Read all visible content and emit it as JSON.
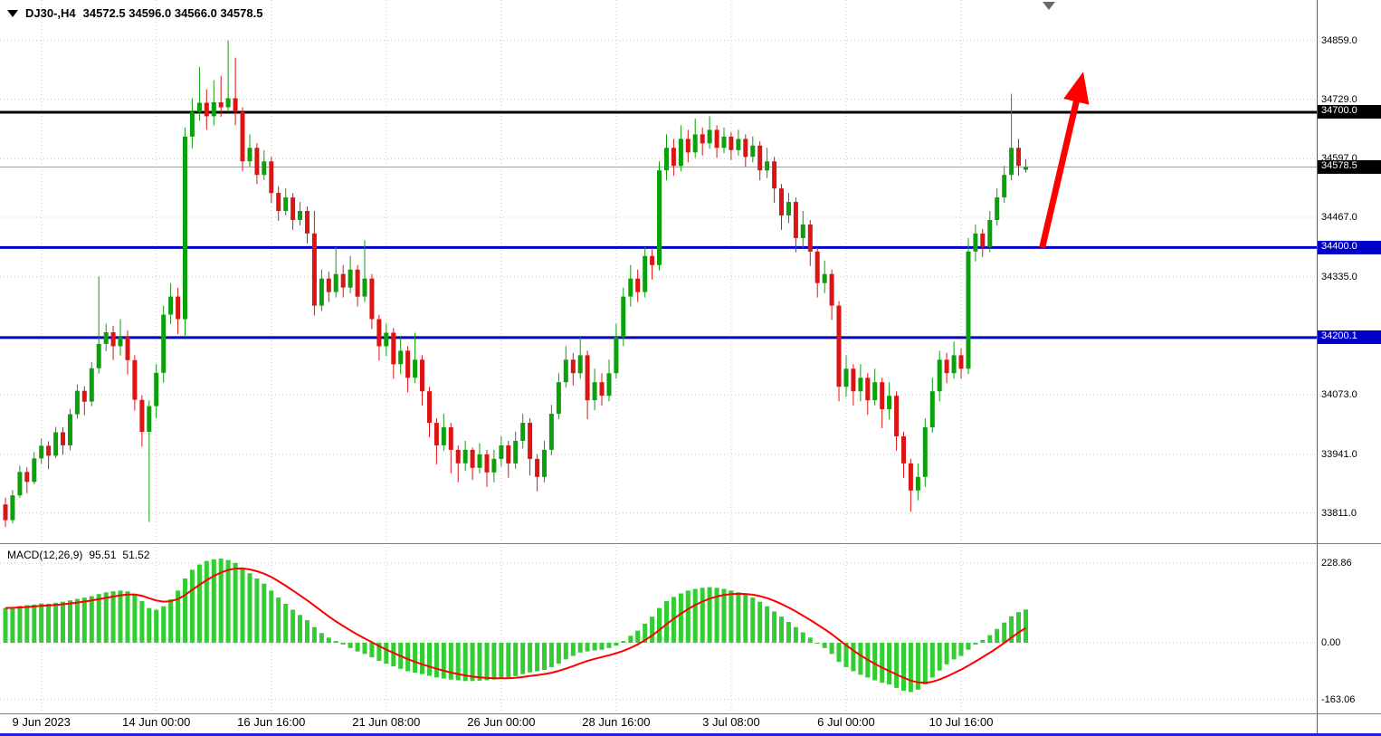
{
  "header": {
    "symbol_timeframe": "DJ30-,H4",
    "ohlc": "34572.5 34596.0 34566.0 34578.5"
  },
  "colors": {
    "background": "#FFFFFF",
    "bull": "#0ca00c",
    "bear": "#dc1414",
    "macd_hist": "#32CD32",
    "macd_signal": "#FF0000",
    "grid": "#c8c8c8",
    "current_line": "#a0a0a0",
    "arrow": "#FF0000",
    "hline_black": "#000000",
    "hline_blue": "#0000C8"
  },
  "price_axis": {
    "labels": [
      {
        "text": "34859.0",
        "price": 34859.0
      },
      {
        "text": "34729.0",
        "price": 34729.0
      },
      {
        "text": "34597.0",
        "price": 34597.0
      },
      {
        "text": "34467.0",
        "price": 34467.0
      },
      {
        "text": "34335.0",
        "price": 34335.0
      },
      {
        "text": "34073.0",
        "price": 34073.0
      },
      {
        "text": "33941.0",
        "price": 33941.0
      },
      {
        "text": "33811.0",
        "price": 33811.0
      }
    ],
    "badges": [
      {
        "text": "34700.0",
        "price": 34700.0,
        "bg": "#000000"
      },
      {
        "text": "34578.5",
        "price": 34578.5,
        "bg": "#000000"
      },
      {
        "text": "34400.0",
        "price": 34400.0,
        "bg": "#0000C8"
      },
      {
        "text": "34200.1",
        "price": 34200.1,
        "bg": "#0000C8"
      }
    ]
  },
  "time_axis": {
    "labels": [
      {
        "text": "9 Jun 2023",
        "index": 5
      },
      {
        "text": "14 Jun 00:00",
        "index": 21
      },
      {
        "text": "16 Jun 16:00",
        "index": 37
      },
      {
        "text": "21 Jun 08:00",
        "index": 53
      },
      {
        "text": "26 Jun 00:00",
        "index": 69
      },
      {
        "text": "28 Jun 16:00",
        "index": 85
      },
      {
        "text": "3 Jul 08:00",
        "index": 101
      },
      {
        "text": "6 Jul 00:00",
        "index": 117
      },
      {
        "text": "10 Jul 16:00",
        "index": 133
      }
    ]
  },
  "macd_panel": {
    "label": "MACD(12,26,9)",
    "macd_value": "95.51",
    "signal_value": "51.52",
    "scale": [
      {
        "text": "228.86",
        "value": 228.86
      },
      {
        "text": "0.00",
        "value": 0
      },
      {
        "text": "-163.06",
        "value": -163.06
      }
    ]
  },
  "chart_data": {
    "type": "candlestick",
    "symbol": "DJ30-",
    "timeframe": "H4",
    "title": "DJ30-,H4 34572.5 34596.0 34566.0 34578.5",
    "current_price": 34578.5,
    "price_range": {
      "min": 33744,
      "max": 34949
    },
    "hlines": [
      {
        "price": 34700.0,
        "color": "#000000",
        "width": 3
      },
      {
        "price": 34400.0,
        "color": "#0000C8",
        "width": 3
      },
      {
        "price": 34200.1,
        "color": "#0000C8",
        "width": 3
      }
    ],
    "trend_arrow": {
      "from_index": 144.3,
      "from_price": 34400,
      "to_index": 150,
      "to_price": 34790
    },
    "candles": [
      [
        33830,
        33845,
        33780,
        33795
      ],
      [
        33795,
        33862,
        33788,
        33850
      ],
      [
        33850,
        33916,
        33845,
        33902
      ],
      [
        33902,
        33912,
        33855,
        33880
      ],
      [
        33880,
        33946,
        33875,
        33932
      ],
      [
        33932,
        33976,
        33920,
        33960
      ],
      [
        33960,
        33970,
        33908,
        33938
      ],
      [
        33938,
        34002,
        33933,
        33990
      ],
      [
        33990,
        34001,
        33940,
        33961
      ],
      [
        33961,
        34042,
        33950,
        34030
      ],
      [
        34030,
        34096,
        34020,
        34082
      ],
      [
        34082,
        34092,
        34028,
        34058
      ],
      [
        34058,
        34146,
        34048,
        34132
      ],
      [
        34132,
        34335,
        34120,
        34186
      ],
      [
        34186,
        34231,
        34170,
        34212
      ],
      [
        34212,
        34226,
        34150,
        34181
      ],
      [
        34181,
        34241,
        34160,
        34201
      ],
      [
        34201,
        34216,
        34118,
        34150
      ],
      [
        34150,
        34161,
        34038,
        34062
      ],
      [
        34062,
        34072,
        33958,
        33991
      ],
      [
        33991,
        34061,
        33791,
        34048
      ],
      [
        34048,
        34141,
        34021,
        34122
      ],
      [
        34122,
        34271,
        34100,
        34251
      ],
      [
        34251,
        34321,
        34230,
        34291
      ],
      [
        34291,
        34311,
        34208,
        34241
      ],
      [
        34241,
        34666,
        34201,
        34646
      ],
      [
        34646,
        34731,
        34620,
        34701
      ],
      [
        34701,
        34801,
        34681,
        34721
      ],
      [
        34721,
        34751,
        34661,
        34691
      ],
      [
        34691,
        34771,
        34671,
        34722
      ],
      [
        34722,
        34781,
        34690,
        34711
      ],
      [
        34711,
        34859,
        34701,
        34731
      ],
      [
        34731,
        34821,
        34671,
        34701
      ],
      [
        34701,
        34711,
        34569,
        34591
      ],
      [
        34591,
        34651,
        34579,
        34621
      ],
      [
        34621,
        34631,
        34541,
        34561
      ],
      [
        34561,
        34616,
        34550,
        34591
      ],
      [
        34591,
        34601,
        34499,
        34521
      ],
      [
        34521,
        34536,
        34459,
        34481
      ],
      [
        34481,
        34531,
        34471,
        34511
      ],
      [
        34511,
        34521,
        34439,
        34461
      ],
      [
        34461,
        34501,
        34449,
        34481
      ],
      [
        34481,
        34491,
        34409,
        34431
      ],
      [
        34431,
        34481,
        34249,
        34271
      ],
      [
        34271,
        34351,
        34259,
        34331
      ],
      [
        34331,
        34346,
        34279,
        34301
      ],
      [
        34301,
        34401,
        34289,
        34341
      ],
      [
        34341,
        34361,
        34289,
        34311
      ],
      [
        34311,
        34381,
        34299,
        34351
      ],
      [
        34351,
        34361,
        34269,
        34291
      ],
      [
        34291,
        34416,
        34279,
        34331
      ],
      [
        34331,
        34341,
        34219,
        34241
      ],
      [
        34241,
        34251,
        34149,
        34181
      ],
      [
        34181,
        34231,
        34159,
        34211
      ],
      [
        34211,
        34221,
        34109,
        34141
      ],
      [
        34141,
        34201,
        34119,
        34171
      ],
      [
        34171,
        34181,
        34079,
        34111
      ],
      [
        34111,
        34211,
        34099,
        34151
      ],
      [
        34151,
        34161,
        34049,
        34081
      ],
      [
        34081,
        34091,
        33979,
        34011
      ],
      [
        34011,
        34021,
        33919,
        33961
      ],
      [
        33961,
        34031,
        33949,
        34001
      ],
      [
        34001,
        34011,
        33899,
        33951
      ],
      [
        33951,
        33961,
        33879,
        33921
      ],
      [
        33921,
        33971,
        33904,
        33951
      ],
      [
        33951,
        33956,
        33884,
        33911
      ],
      [
        33911,
        33966,
        33899,
        33941
      ],
      [
        33941,
        33951,
        33869,
        33901
      ],
      [
        33901,
        33951,
        33879,
        33931
      ],
      [
        33931,
        33981,
        33914,
        33961
      ],
      [
        33961,
        33971,
        33889,
        33921
      ],
      [
        33921,
        33991,
        33909,
        33971
      ],
      [
        33971,
        34031,
        33954,
        34011
      ],
      [
        34011,
        34021,
        33894,
        33931
      ],
      [
        33931,
        33941,
        33859,
        33891
      ],
      [
        33891,
        33971,
        33879,
        33951
      ],
      [
        33951,
        34051,
        33939,
        34031
      ],
      [
        34031,
        34121,
        34019,
        34101
      ],
      [
        34101,
        34181,
        34089,
        34151
      ],
      [
        34151,
        34166,
        34094,
        34121
      ],
      [
        34121,
        34201,
        34109,
        34161
      ],
      [
        34161,
        34171,
        34019,
        34061
      ],
      [
        34061,
        34131,
        34039,
        34101
      ],
      [
        34101,
        34121,
        34049,
        34071
      ],
      [
        34071,
        34151,
        34059,
        34121
      ],
      [
        34121,
        34231,
        34109,
        34201
      ],
      [
        34201,
        34311,
        34181,
        34291
      ],
      [
        34291,
        34361,
        34269,
        34331
      ],
      [
        34331,
        34351,
        34279,
        34301
      ],
      [
        34301,
        34401,
        34289,
        34381
      ],
      [
        34381,
        34396,
        34329,
        34361
      ],
      [
        34361,
        34591,
        34349,
        34571
      ],
      [
        34571,
        34651,
        34549,
        34621
      ],
      [
        34621,
        34641,
        34559,
        34581
      ],
      [
        34581,
        34671,
        34569,
        34641
      ],
      [
        34641,
        34661,
        34589,
        34611
      ],
      [
        34611,
        34686,
        34599,
        34651
      ],
      [
        34651,
        34666,
        34604,
        34631
      ],
      [
        34631,
        34691,
        34619,
        34661
      ],
      [
        34661,
        34671,
        34599,
        34621
      ],
      [
        34621,
        34666,
        34609,
        34646
      ],
      [
        34646,
        34656,
        34594,
        34616
      ],
      [
        34616,
        34661,
        34604,
        34641
      ],
      [
        34641,
        34651,
        34579,
        34601
      ],
      [
        34601,
        34646,
        34589,
        34626
      ],
      [
        34626,
        34636,
        34549,
        34571
      ],
      [
        34571,
        34621,
        34554,
        34591
      ],
      [
        34591,
        34601,
        34499,
        34531
      ],
      [
        34531,
        34541,
        34439,
        34471
      ],
      [
        34471,
        34521,
        34454,
        34501
      ],
      [
        34501,
        34511,
        34389,
        34421
      ],
      [
        34421,
        34481,
        34399,
        34451
      ],
      [
        34451,
        34461,
        34359,
        34391
      ],
      [
        34391,
        34401,
        34289,
        34321
      ],
      [
        34321,
        34371,
        34299,
        34341
      ],
      [
        34341,
        34351,
        34239,
        34271
      ],
      [
        34271,
        34281,
        34059,
        34091
      ],
      [
        34091,
        34161,
        34069,
        34131
      ],
      [
        34131,
        34141,
        34049,
        34081
      ],
      [
        34081,
        34141,
        34059,
        34111
      ],
      [
        34111,
        34121,
        34029,
        34061
      ],
      [
        34061,
        34131,
        34049,
        34101
      ],
      [
        34101,
        34111,
        33999,
        34041
      ],
      [
        34041,
        34101,
        34019,
        34071
      ],
      [
        34071,
        34081,
        33949,
        33981
      ],
      [
        33981,
        33991,
        33889,
        33921
      ],
      [
        33921,
        33931,
        33814,
        33861
      ],
      [
        33861,
        33921,
        33839,
        33891
      ],
      [
        33891,
        34021,
        33869,
        34001
      ],
      [
        34001,
        34111,
        33989,
        34081
      ],
      [
        34081,
        34171,
        34059,
        34151
      ],
      [
        34151,
        34166,
        34099,
        34121
      ],
      [
        34121,
        34191,
        34109,
        34161
      ],
      [
        34161,
        34176,
        34109,
        34131
      ],
      [
        34131,
        34421,
        34119,
        34391
      ],
      [
        34391,
        34451,
        34369,
        34431
      ],
      [
        34431,
        34441,
        34379,
        34401
      ],
      [
        34401,
        34481,
        34389,
        34461
      ],
      [
        34461,
        34531,
        34449,
        34511
      ],
      [
        34511,
        34581,
        34499,
        34561
      ],
      [
        34561,
        34741,
        34549,
        34621
      ],
      [
        34621,
        34641,
        34559,
        34581
      ],
      [
        34572.5,
        34596,
        34566,
        34578.5
      ]
    ],
    "indicator": {
      "type": "macd",
      "params": [
        12,
        26,
        9
      ],
      "signal_period": 9,
      "range": {
        "min": -203,
        "max": 276
      },
      "histogram": [
        100,
        103,
        106,
        108,
        110,
        113,
        112,
        115,
        118,
        122,
        126,
        130,
        134,
        140,
        145,
        148,
        150,
        148,
        140,
        120,
        100,
        95,
        105,
        125,
        150,
        185,
        210,
        225,
        235,
        240,
        242,
        238,
        230,
        215,
        200,
        185,
        170,
        150,
        130,
        112,
        95,
        80,
        65,
        45,
        28,
        15,
        5,
        -5,
        -15,
        -25,
        -32,
        -42,
        -52,
        -60,
        -68,
        -75,
        -82,
        -86,
        -90,
        -95,
        -100,
        -103,
        -106,
        -108,
        -110,
        -110,
        -109,
        -108,
        -106,
        -103,
        -100,
        -96,
        -90,
        -85,
        -82,
        -78,
        -70,
        -60,
        -48,
        -38,
        -28,
        -25,
        -22,
        -20,
        -15,
        -8,
        5,
        20,
        35,
        55,
        75,
        100,
        120,
        132,
        142,
        150,
        155,
        158,
        160,
        158,
        155,
        150,
        145,
        138,
        130,
        118,
        105,
        90,
        75,
        60,
        45,
        30,
        15,
        0,
        -15,
        -32,
        -55,
        -70,
        -82,
        -92,
        -100,
        -108,
        -115,
        -120,
        -130,
        -138,
        -142,
        -135,
        -120,
        -100,
        -80,
        -62,
        -48,
        -38,
        -20,
        -5,
        8,
        22,
        40,
        58,
        76,
        88,
        95.51
      ]
    }
  }
}
